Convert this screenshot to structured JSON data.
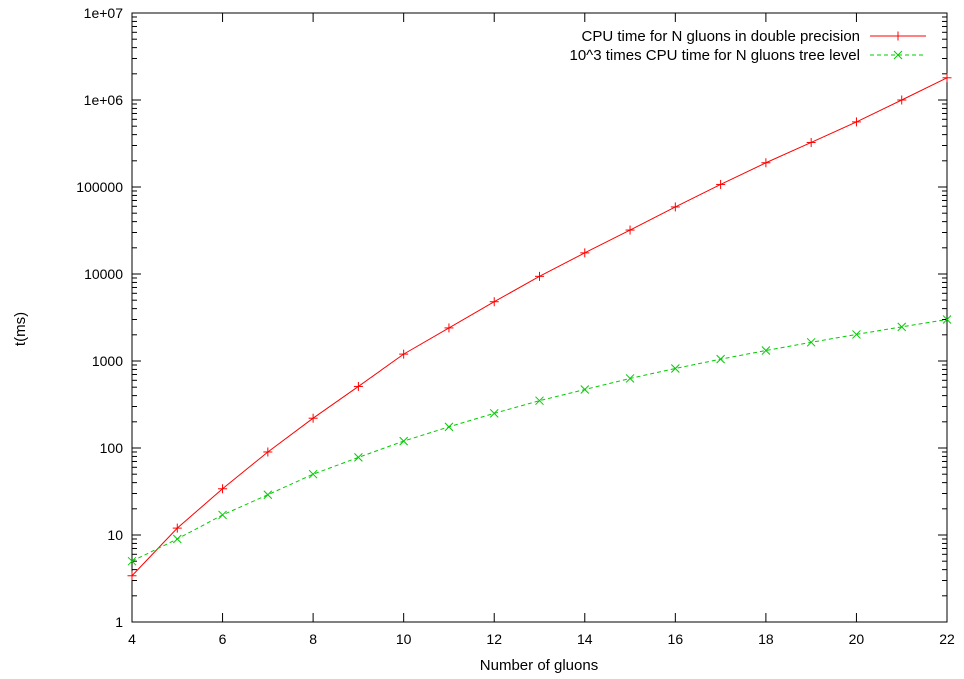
{
  "chart_data": {
    "type": "line",
    "xlabel": "Number of gluons",
    "ylabel": "t(ms)",
    "xlim": [
      4,
      22
    ],
    "ylim": [
      1,
      10000000
    ],
    "yscale": "log",
    "x_ticks": [
      "4",
      "6",
      "8",
      "10",
      "12",
      "14",
      "16",
      "18",
      "20",
      "22"
    ],
    "y_ticks": [
      "1",
      "10",
      "100",
      "1000",
      "10000",
      "100000",
      "1e+06",
      "1e+07"
    ],
    "legend_position": "top-right",
    "grid": false,
    "series": [
      {
        "name": "CPU time for N gluons in double precision",
        "color": "#ff0000",
        "marker": "plus",
        "line": "solid",
        "x": [
          4,
          5,
          6,
          7,
          8,
          9,
          10,
          11,
          12,
          13,
          14,
          15,
          16,
          17,
          18,
          19,
          20,
          21,
          22
        ],
        "y": [
          3.4,
          12,
          34,
          90,
          220,
          510,
          1200,
          2400,
          4800,
          9400,
          17500,
          32000,
          59000,
          107000,
          190000,
          325000,
          560000,
          1000000,
          1800000
        ]
      },
      {
        "name": "10^3 times CPU time for N gluons tree level",
        "color": "#00cc00",
        "marker": "x",
        "line": "dashed",
        "x": [
          4,
          5,
          6,
          7,
          8,
          9,
          10,
          11,
          12,
          13,
          14,
          15,
          16,
          17,
          18,
          19,
          20,
          21,
          22
        ],
        "y": [
          5,
          9,
          17,
          29,
          50,
          78,
          120,
          175,
          250,
          350,
          470,
          630,
          820,
          1050,
          1320,
          1640,
          2020,
          2470,
          3000
        ]
      }
    ]
  }
}
